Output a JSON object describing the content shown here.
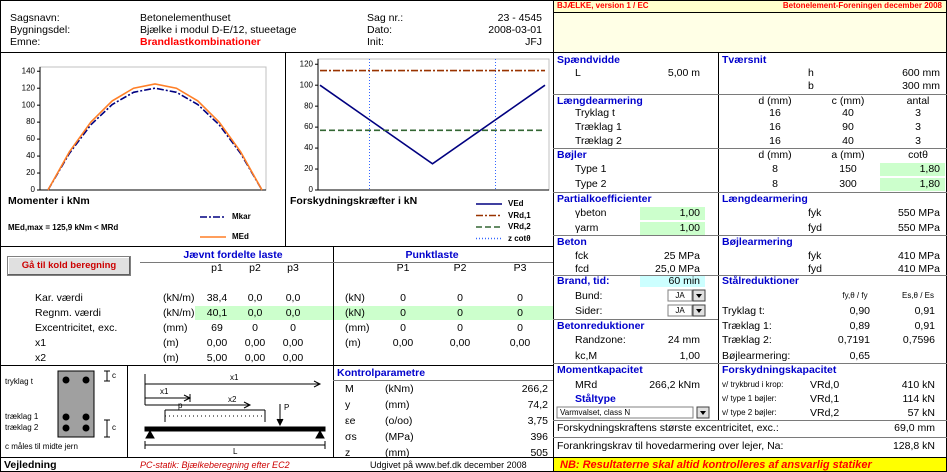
{
  "header": {
    "rows": [
      [
        "Sagsnavn:",
        "Betonelementhuset",
        "Sag nr.:",
        "23 - 4545"
      ],
      [
        "Bygningsdel:",
        "Bjælke i modul D-E/12, stueetage",
        "Dato:",
        "2008-03-01"
      ],
      [
        "Emne:",
        "Brandlastkombinationer",
        "Init:",
        "JFJ"
      ]
    ]
  },
  "banner": {
    "version": "BJÆLKE, version 1 / EC",
    "publisher": "Betonelement-Foreningen december 2008"
  },
  "moment_chart": {
    "type": "line",
    "title": "Momenter i kNm",
    "result": "MEd,max =  125,9 kNm <  MRd",
    "x": [
      0,
      0.5,
      1,
      1.5,
      2,
      2.5,
      3,
      3.5,
      4,
      4.5,
      5
    ],
    "xlim": [
      0,
      5
    ],
    "ylim": [
      0,
      145
    ],
    "yticks": [
      0,
      20,
      40,
      60,
      80,
      100,
      120,
      140
    ],
    "series": [
      {
        "name": "Mkar",
        "color": "#000080",
        "style": "dashdot",
        "values": [
          0,
          43.2,
          76.8,
          100.8,
          115.2,
          120,
          115.2,
          100.8,
          76.8,
          43.2,
          0
        ]
      },
      {
        "name": "MEd",
        "color": "#ff7f27",
        "style": "solid",
        "values": [
          0,
          45,
          80,
          105,
          120,
          125,
          120,
          105,
          80,
          45,
          0
        ]
      }
    ]
  },
  "shear_chart": {
    "type": "line",
    "title": "Forskydningskræfter i kN",
    "x": [
      0,
      1.25,
      2.5,
      3.75,
      5
    ],
    "xlim": [
      0,
      5
    ],
    "ylim": [
      0,
      125
    ],
    "yticks": [
      0,
      20,
      40,
      60,
      80,
      100,
      120
    ],
    "series": [
      {
        "name": "VEd",
        "color": "#000080",
        "style": "solid",
        "values": [
          100,
          62.5,
          25,
          62.5,
          100
        ]
      },
      {
        "name": "VRd,1",
        "color": "#993300",
        "style": "dashdot",
        "values": [
          114,
          114,
          114,
          114,
          114
        ]
      },
      {
        "name": "VRd,2",
        "color": "#336633",
        "style": "dashed",
        "values": [
          57,
          57,
          57,
          57,
          57
        ]
      }
    ],
    "z_cot": {
      "name": "z cotθ",
      "color": "#3366ff",
      "style": "dotted",
      "x": [
        1.1,
        3.9
      ]
    }
  },
  "loads": {
    "button": "Gå til kold beregning",
    "uniform_title": "Jævnt fordelte laste",
    "point_title": "Punktlaste",
    "uniform_cols": [
      "p1",
      "p2",
      "p3"
    ],
    "point_cols": [
      "P1",
      "P2",
      "P3"
    ],
    "rows": [
      {
        "label": "Kar. værdi",
        "unit": "(kN/m)",
        "uniform": [
          "38,4",
          "0,0",
          "0,0"
        ],
        "point_unit": "(kN)",
        "point": [
          "0",
          "0",
          "0"
        ]
      },
      {
        "label": "Regnm. værdi",
        "unit": "(kN/m)",
        "uniform": [
          "40,1",
          "0,0",
          "0,0"
        ],
        "point_unit": "(kN)",
        "point": [
          "0",
          "0",
          "0"
        ]
      },
      {
        "label": "Excentricitet, exc.",
        "unit": "(mm)",
        "uniform": [
          "69",
          "0",
          "0"
        ],
        "point_unit": "(mm)",
        "point": [
          "0",
          "0",
          "0"
        ]
      },
      {
        "label": "x1",
        "unit": "(m)",
        "uniform": [
          "0,00",
          "0,00",
          "0,00"
        ],
        "point_unit": "(m)",
        "point": [
          "0,00",
          "0,00",
          "0,00"
        ]
      },
      {
        "label": "x2",
        "unit": "(m)",
        "uniform": [
          "5,00",
          "0,00",
          "0,00"
        ]
      }
    ]
  },
  "section_diagram": {
    "labels": [
      "tryklag t",
      "træklag 1",
      "træklag 2",
      "c måles til midte jern",
      "c",
      "c"
    ]
  },
  "beam_diagram": {
    "labels": [
      "x1",
      "x1",
      "x2",
      "p",
      "P",
      "L"
    ]
  },
  "control": {
    "title": "Kontrolparametre",
    "rows": [
      [
        "M",
        "(kNm)",
        "266,2"
      ],
      [
        "y",
        "(mm)",
        "74,2"
      ],
      [
        "εe",
        "(o/oo)",
        "3,75"
      ],
      [
        "σs",
        "(MPa)",
        "396"
      ],
      [
        "z",
        "(mm)",
        "505"
      ]
    ]
  },
  "right": {
    "rows": [
      [
        "Spændvidde",
        "Tværsnit"
      ],
      [
        "L",
        "5,00 m",
        "h",
        "600 mm"
      ],
      [
        "b",
        "300 mm"
      ],
      [
        "Længdearmering",
        "d (mm)",
        "c (mm)",
        "antal"
      ],
      [
        "Tryklag  t",
        "16",
        "40",
        "3"
      ],
      [
        "Træklag 1",
        "16",
        "90",
        "3"
      ],
      [
        "Træklag 2",
        "16",
        "40",
        "3"
      ],
      [
        "Bøjler",
        "d (mm)",
        "a (mm)",
        "cotθ"
      ],
      [
        "Type 1",
        "8",
        "150",
        "1,80"
      ],
      [
        "Type 2",
        "8",
        "300",
        "1,80"
      ],
      [
        "Partialkoefficienter",
        "Længdearmering"
      ],
      [
        "γbeton",
        "1,00",
        "fyk",
        "550 MPa"
      ],
      [
        "γarm",
        "1,00",
        "fyd",
        "550 MPa"
      ],
      [
        "Beton",
        "Bøjlearmering"
      ],
      [
        "fck",
        "25 MPa",
        "fyk",
        "410 MPa"
      ],
      [
        "fcd",
        "25,0 MPa",
        "fyd",
        "410 MPa"
      ],
      [
        "Brand, tid:",
        "60 min",
        "Stålreduktioner"
      ],
      [
        "Bund:",
        "JA",
        "fy,θ / fy",
        "Es,θ / Es"
      ],
      [
        "Sider:",
        "JA",
        "Tryklag  t:",
        "0,90",
        "0,91"
      ],
      [
        "Betonreduktioner",
        "Træklag 1:",
        "0,89",
        "0,91"
      ],
      [
        "Randzone:",
        "24 mm",
        "Træklag 2:",
        "0,7191",
        "0,7596"
      ],
      [
        "kc,M",
        "1,00",
        "Bøjlearmering:",
        "0,65"
      ],
      [
        "Momentkapacitet",
        "Forskydningskapacitet"
      ],
      [
        "MRd",
        "266,2 kNm",
        "v/ trykbrud i krop:",
        "VRd,0",
        "410 kN"
      ],
      [
        "Ståltype",
        "v/ type 1 bøjler:",
        "VRd,1",
        "114 kN"
      ],
      [
        "Varmvalset, class N",
        "v/ type 2 bøjler:",
        "VRd,2",
        "57 kN"
      ],
      [
        "Forskydningskraftens største excentricitet, exc.:",
        "69,0 mm"
      ],
      [
        "Forankringskrav til hovedarmering over lejer, Na:",
        "128,8 kN"
      ]
    ]
  },
  "footer": {
    "guide": "Vejledning",
    "program": "PC-statik: Bjælkeberegning efter EC2",
    "published": "Udgivet på www.bef.dk  december 2008",
    "warning": "NB: Resultaterne skal altid kontrolleres af ansvarlig statiker"
  }
}
